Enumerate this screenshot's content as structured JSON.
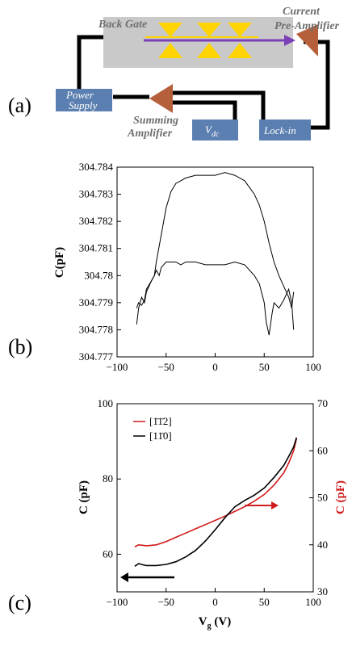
{
  "panels": {
    "a": {
      "label": "(a)"
    },
    "b": {
      "label": "(b)"
    },
    "c": {
      "label": "(c)"
    }
  },
  "schematic": {
    "back_gate": "Back Gate",
    "current_preamp_line1": "Current",
    "current_preamp_line2": "Pre-Amplifier",
    "power_supply_line1": "Power",
    "power_supply_line2": "Supply",
    "summing_amp_line1": "Summing",
    "summing_amp_line2": "Amplifier",
    "vdc_main": "V",
    "vdc_sub": "dc",
    "lockin": "Lock-in",
    "colors": {
      "box": "#5b7fb0",
      "chip": "#c9c9c9",
      "triangle": "#ffd400",
      "amp": "#b5603a",
      "arrow": "#7b3fb8",
      "wire": "#000000"
    }
  },
  "chart_data": [
    {
      "type": "line",
      "panel": "b",
      "ylabel": "C(pF)",
      "xlabel": "",
      "xlim": [
        -100,
        100
      ],
      "ylim": [
        304.777,
        304.784
      ],
      "xticks": [
        "−100",
        "−50",
        "0",
        "50",
        "100"
      ],
      "yticks": [
        "304.777",
        "304.778",
        "304.779",
        "304.78",
        "304.781",
        "304.782",
        "304.783",
        "304.784"
      ],
      "series": [
        {
          "color": "#000000",
          "x": [
            -80,
            -78,
            -75,
            -72,
            -70,
            -65,
            -62,
            -60,
            -55,
            -50,
            -45,
            -40,
            -35,
            -30,
            -20,
            -10,
            0,
            10,
            20,
            30,
            40,
            45,
            50,
            55,
            60,
            65,
            70,
            75,
            78,
            80
          ],
          "y": [
            304.7782,
            304.7788,
            304.7792,
            304.779,
            304.7794,
            304.7798,
            304.78,
            304.7805,
            304.7815,
            304.7825,
            304.7831,
            304.7834,
            304.7835,
            304.7836,
            304.7837,
            304.7837,
            304.7837,
            304.7838,
            304.7837,
            304.7835,
            304.783,
            304.7826,
            304.782,
            304.7812,
            304.7805,
            304.78,
            304.7796,
            304.7792,
            304.7788,
            304.7794
          ]
        },
        {
          "color": "#000000",
          "x": [
            -80,
            -78,
            -75,
            -72,
            -70,
            -65,
            -62,
            -60,
            -57,
            -55,
            -50,
            -45,
            -40,
            -35,
            -30,
            -20,
            -10,
            0,
            10,
            20,
            30,
            40,
            45,
            50,
            52,
            55,
            58,
            60,
            65,
            70,
            75,
            78,
            80
          ],
          "y": [
            304.7788,
            304.779,
            304.7789,
            304.7791,
            304.7795,
            304.7798,
            304.78,
            304.7802,
            304.78,
            304.7803,
            304.7805,
            304.7805,
            304.7805,
            304.7804,
            304.7805,
            304.7805,
            304.7804,
            304.7804,
            304.7804,
            304.7805,
            304.7804,
            304.78,
            304.7797,
            304.779,
            304.7783,
            304.7778,
            304.7786,
            304.779,
            304.7788,
            304.7791,
            304.7795,
            304.779,
            304.778
          ]
        }
      ]
    },
    {
      "type": "line",
      "panel": "c",
      "xlabel_main": "V",
      "xlabel_sub": "g",
      "xlabel_unit": " (V)",
      "ylabel_left": "C (pF)",
      "ylabel_right": "C (pF)",
      "xlim": [
        -100,
        100
      ],
      "ylim_left": [
        50,
        100
      ],
      "ylim_right": [
        30,
        70
      ],
      "xticks": [
        "−100",
        "−50",
        "0",
        "50",
        "100"
      ],
      "yticks_left": [
        "60",
        "80",
        "100"
      ],
      "yticks_right": [
        "30",
        "40",
        "50",
        "60",
        "70"
      ],
      "legend": {
        "position": "top-left"
      },
      "series": [
        {
          "name": "[1̄1̄2]",
          "color": "#d11a1a",
          "axis": "right",
          "x": [
            -82,
            -78,
            -74,
            -70,
            -60,
            -50,
            -40,
            -30,
            -20,
            -10,
            0,
            10,
            20,
            30,
            40,
            50,
            60,
            70,
            75,
            80,
            83
          ],
          "y": [
            39.6,
            40.0,
            39.9,
            39.8,
            40.0,
            40.7,
            41.6,
            42.5,
            43.4,
            44.3,
            45.2,
            46.1,
            47.1,
            48.1,
            49.3,
            50.7,
            52.7,
            55.3,
            57.4,
            60.0,
            62.6
          ]
        },
        {
          "name": "[11̄0]",
          "color": "#000000",
          "axis": "left",
          "x": [
            -82,
            -78,
            -74,
            -70,
            -60,
            -50,
            -40,
            -30,
            -20,
            -10,
            0,
            10,
            20,
            30,
            40,
            50,
            60,
            70,
            75,
            80,
            83
          ],
          "y": [
            56.8,
            57.5,
            57.2,
            57.0,
            57.0,
            57.3,
            58.0,
            59.3,
            61.0,
            63.5,
            66.5,
            69.7,
            72.6,
            74.3,
            75.7,
            77.6,
            80.4,
            83.6,
            86.0,
            88.5,
            91.0
          ]
        }
      ]
    }
  ]
}
